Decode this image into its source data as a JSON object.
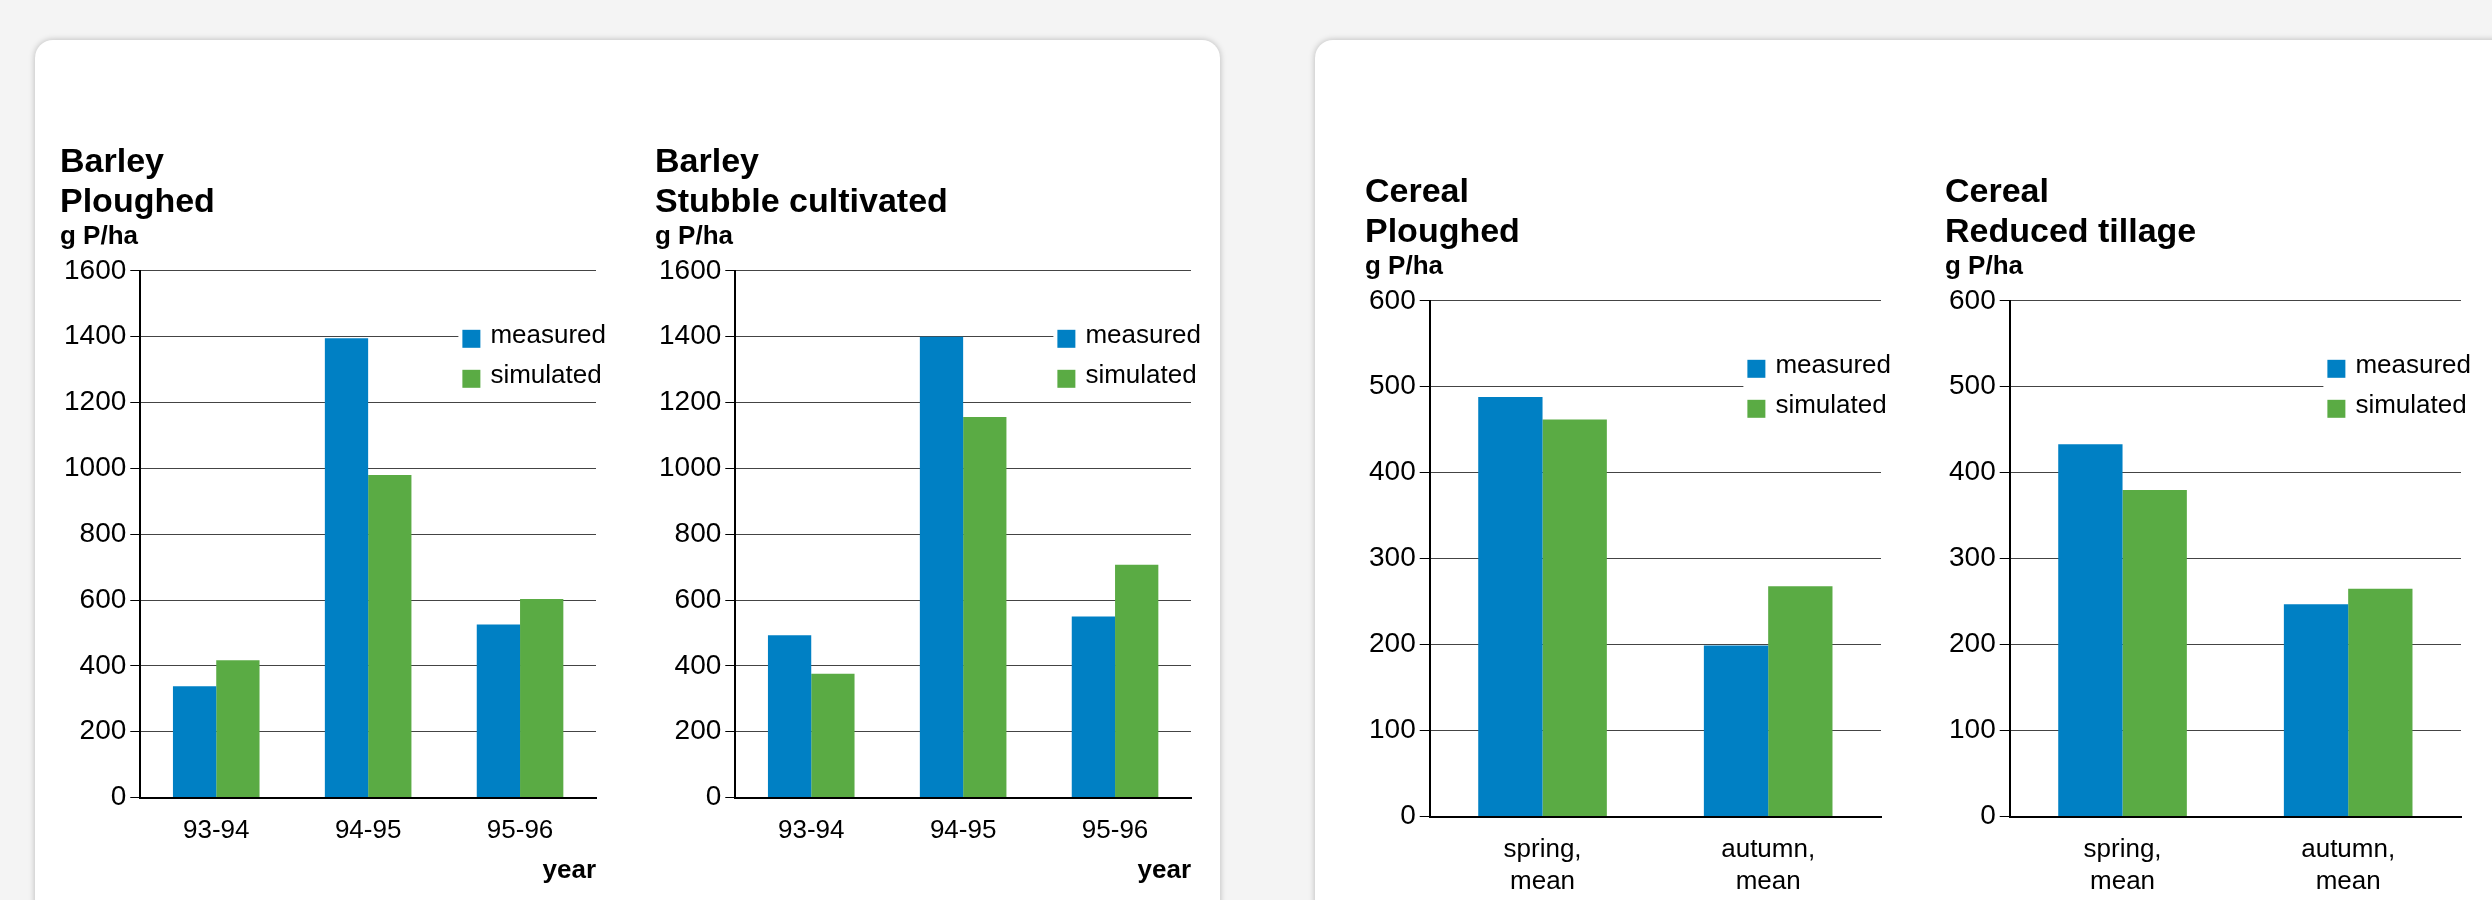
{
  "chart_data": [
    {
      "type": "bar",
      "title": "Barley",
      "subtitle": "Ploughed",
      "ylabel": "g P/ha",
      "xlabel": "year",
      "categories": [
        "93-94",
        "94-95",
        "95-96"
      ],
      "series": [
        {
          "name": "measured",
          "color": "#0080c4",
          "values": [
            338,
            1395,
            526
          ]
        },
        {
          "name": "simulated",
          "color": "#5aab44",
          "values": [
            417,
            980,
            603
          ]
        }
      ],
      "ylim": [
        0,
        1600
      ],
      "yticks": [
        0,
        200,
        400,
        600,
        800,
        1000,
        1200,
        1400,
        1600
      ],
      "grid": "y",
      "legend": "top right"
    },
    {
      "type": "bar",
      "title": "Barley",
      "subtitle": "Stubble cultivated",
      "ylabel": "g P/ha",
      "xlabel": "year",
      "categories": [
        "93-94",
        "94-95",
        "95-96"
      ],
      "series": [
        {
          "name": "measured",
          "color": "#0080c4",
          "values": [
            493,
            1400,
            550
          ]
        },
        {
          "name": "simulated",
          "color": "#5aab44",
          "values": [
            376,
            1156,
            707
          ]
        }
      ],
      "ylim": [
        0,
        1600
      ],
      "yticks": [
        0,
        200,
        400,
        600,
        800,
        1000,
        1200,
        1400,
        1600
      ],
      "grid": "y",
      "legend": "top right"
    },
    {
      "type": "bar",
      "title": "Cereal",
      "subtitle": "Ploughed",
      "ylabel": "g P/ha",
      "categories": [
        "spring, mean",
        "autumn, mean"
      ],
      "series": [
        {
          "name": "measured",
          "color": "#0080c4",
          "values": [
            488,
            199
          ]
        },
        {
          "name": "simulated",
          "color": "#5aab44",
          "values": [
            462,
            268
          ]
        }
      ],
      "ylim": [
        0,
        600
      ],
      "yticks": [
        0,
        100,
        200,
        300,
        400,
        500,
        600
      ],
      "grid": "y",
      "legend": "top right"
    },
    {
      "type": "bar",
      "title": "Cereal",
      "subtitle": "Reduced tillage",
      "ylabel": "g P/ha",
      "categories": [
        "spring, mean",
        "autumn, mean"
      ],
      "series": [
        {
          "name": "measured",
          "color": "#0080c4",
          "values": [
            433,
            247
          ]
        },
        {
          "name": "simulated",
          "color": "#5aab44",
          "values": [
            380,
            265
          ]
        }
      ],
      "ylim": [
        0,
        600
      ],
      "yticks": [
        0,
        100,
        200,
        300,
        400,
        500,
        600
      ],
      "grid": "y",
      "legend": "top right"
    }
  ]
}
